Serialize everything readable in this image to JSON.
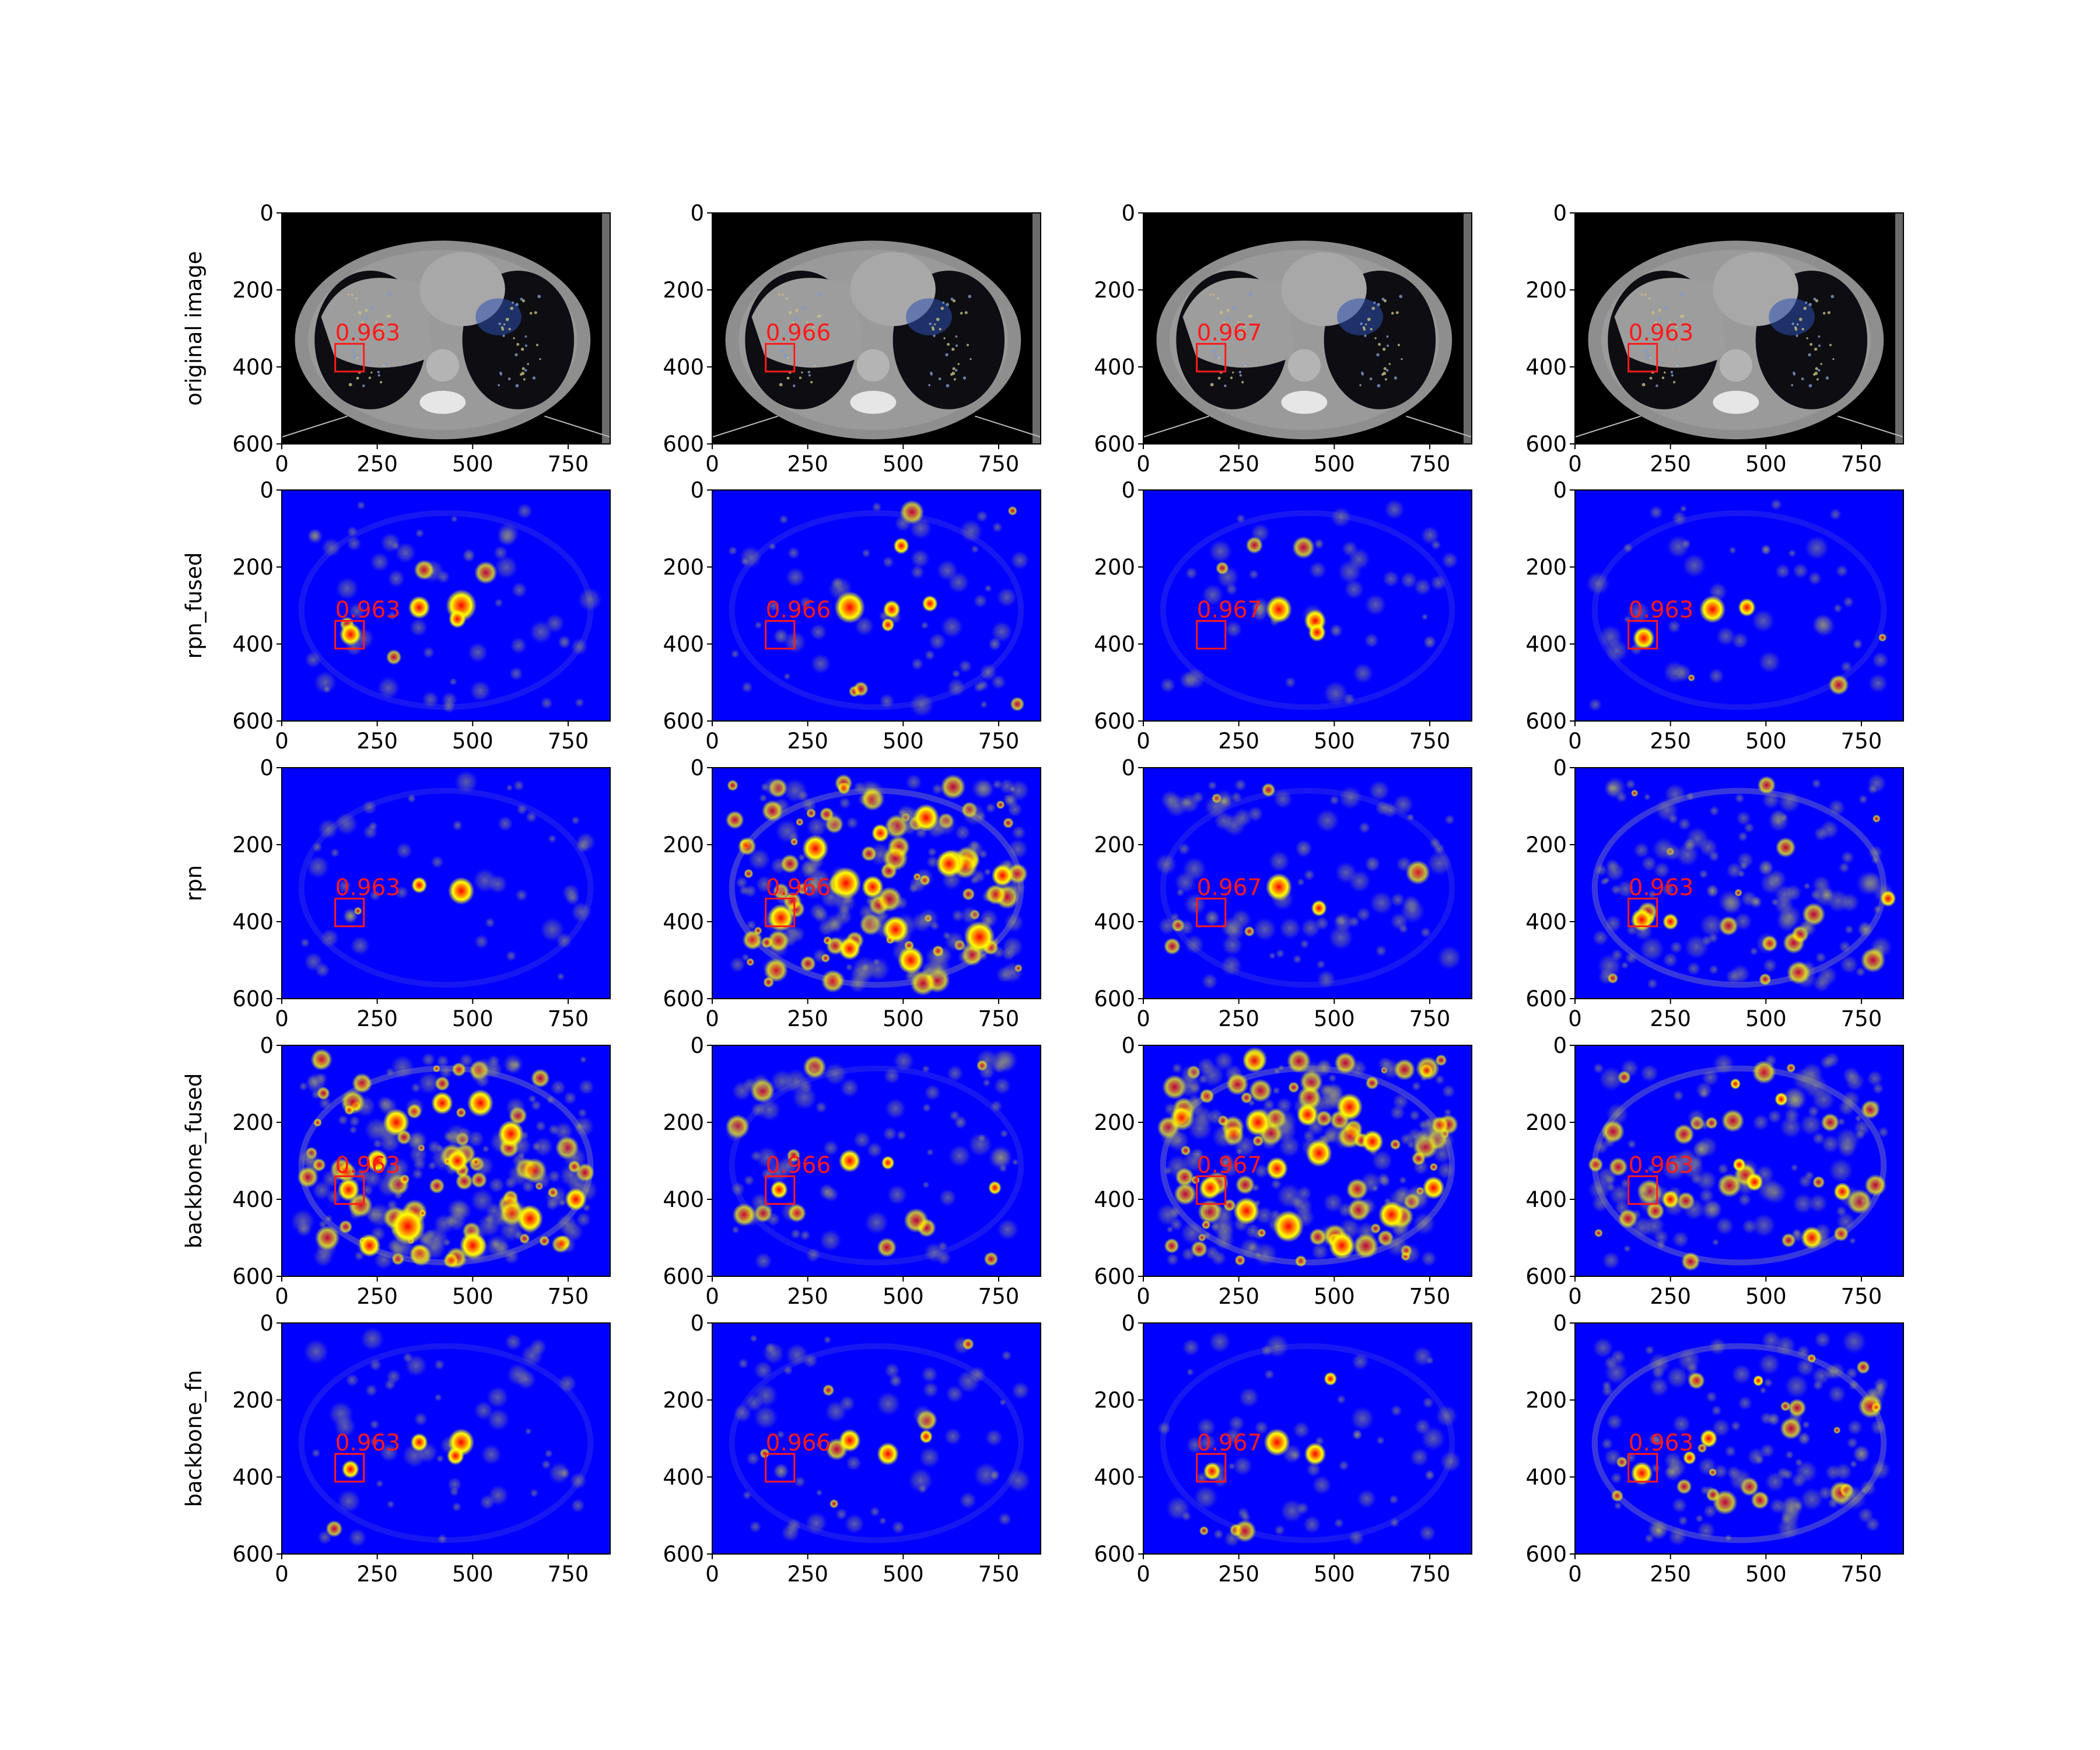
{
  "chart_data": {
    "type": "heatmap",
    "description_rows": [
      "original image",
      "rpn_fused",
      "rpn",
      "backbone_fused",
      "backbone_fn"
    ],
    "columns": 4,
    "x_ticks": [
      0,
      250,
      500,
      750
    ],
    "y_ticks": [
      0,
      200,
      400,
      600
    ],
    "xlim": [
      0,
      860
    ],
    "ylim": [
      600,
      0
    ],
    "scores": [
      "0.963",
      "0.966",
      "0.967",
      "0.963"
    ],
    "detection_box": {
      "x0": 140,
      "y0": 340,
      "x1": 215,
      "y1": 412
    },
    "colors": {
      "background_map": "#0000ff",
      "hot_low": "#ffff00",
      "hot_mid": "#ff8c00",
      "hot_high": "#ff0000",
      "box": "#ff1a1a",
      "ct_gray": "#8e8e8e"
    },
    "panels": [
      [
        {
          "kind": "ct",
          "hotspots": []
        },
        {
          "kind": "ct",
          "hotspots": []
        },
        {
          "kind": "ct",
          "hotspots": []
        },
        {
          "kind": "ct",
          "hotspots": []
        }
      ],
      [
        {
          "kind": "heat",
          "noise": 0.12,
          "hotspots": [
            [
              180,
              375,
              25,
              1.0
            ],
            [
              360,
              305,
              25,
              0.8
            ],
            [
              470,
              300,
              35,
              1.0
            ],
            [
              460,
              335,
              20,
              0.8
            ],
            [
              490,
              170,
              15,
              0.35
            ],
            [
              740,
              395,
              15,
              0.3
            ],
            [
              300,
              230,
              20,
              0.2
            ]
          ]
        },
        {
          "kind": "heat",
          "noise": 0.14,
          "hotspots": [
            [
              360,
              305,
              35,
              1.0
            ],
            [
              470,
              310,
              20,
              0.8
            ],
            [
              460,
              350,
              15,
              0.6
            ],
            [
              570,
              295,
              18,
              0.7
            ],
            [
              495,
              145,
              18,
              0.7
            ],
            [
              180,
              380,
              18,
              0.3
            ],
            [
              740,
              400,
              15,
              0.3
            ]
          ]
        },
        {
          "kind": "heat",
          "noise": 0.1,
          "hotspots": [
            [
              355,
              310,
              30,
              1.0
            ],
            [
              450,
              340,
              25,
              1.0
            ],
            [
              455,
              370,
              20,
              0.9
            ],
            [
              505,
              365,
              15,
              0.3
            ],
            [
              750,
              395,
              15,
              0.35
            ],
            [
              460,
              140,
              12,
              0.3
            ]
          ]
        },
        {
          "kind": "heat",
          "noise": 0.1,
          "hotspots": [
            [
              180,
              385,
              25,
              1.0
            ],
            [
              360,
              310,
              30,
              1.0
            ],
            [
              450,
              305,
              20,
              0.9
            ],
            [
              500,
              155,
              12,
              0.5
            ],
            [
              740,
              400,
              12,
              0.3
            ]
          ]
        }
      ],
      [
        {
          "kind": "heat",
          "noise": 0.1,
          "hotspots": [
            [
              470,
              320,
              30,
              1.0
            ],
            [
              360,
              305,
              18,
              0.7
            ],
            [
              180,
              385,
              18,
              0.4
            ],
            [
              340,
              80,
              10,
              0.25
            ],
            [
              460,
              150,
              12,
              0.25
            ]
          ]
        },
        {
          "kind": "heat",
          "noise": 0.55,
          "hotspots": [
            [
              350,
              300,
              35,
              0.9
            ],
            [
              560,
              130,
              30,
              0.8
            ],
            [
              420,
              310,
              25,
              1.0
            ],
            [
              700,
              440,
              35,
              0.9
            ],
            [
              620,
              250,
              30,
              0.8
            ],
            [
              180,
              390,
              30,
              0.8
            ],
            [
              480,
              420,
              30,
              0.8
            ],
            [
              270,
              210,
              30,
              0.7
            ],
            [
              520,
              500,
              30,
              0.8
            ],
            [
              440,
              170,
              20,
              0.8
            ],
            [
              760,
              280,
              25,
              0.7
            ],
            [
              360,
              470,
              25,
              0.7
            ]
          ]
        },
        {
          "kind": "heat",
          "noise": 0.2,
          "hotspots": [
            [
              355,
              310,
              30,
              1.0
            ],
            [
              460,
              365,
              18,
              0.8
            ],
            [
              180,
              390,
              18,
              0.4
            ],
            [
              600,
              250,
              18,
              0.3
            ],
            [
              420,
              210,
              20,
              0.3
            ]
          ]
        },
        {
          "kind": "heat",
          "noise": 0.32,
          "hotspots": [
            [
              175,
              395,
              25,
              1.0
            ],
            [
              250,
              400,
              18,
              0.6
            ],
            [
              360,
              320,
              15,
              0.5
            ],
            [
              820,
              340,
              18,
              0.6
            ],
            [
              760,
              420,
              18,
              0.5
            ],
            [
              500,
              260,
              18,
              0.5
            ],
            [
              300,
              200,
              15,
              0.4
            ],
            [
              660,
              330,
              15,
              0.4
            ]
          ]
        }
      ],
      [
        {
          "kind": "heat",
          "noise": 0.55,
          "hotspots": [
            [
              175,
              375,
              25,
              1.0
            ],
            [
              330,
              470,
              40,
              0.9
            ],
            [
              460,
              300,
              25,
              1.0
            ],
            [
              520,
              150,
              30,
              0.8
            ],
            [
              600,
              230,
              30,
              0.9
            ],
            [
              300,
              200,
              30,
              0.8
            ],
            [
              420,
              150,
              25,
              0.8
            ],
            [
              650,
              450,
              30,
              0.8
            ],
            [
              250,
              300,
              25,
              0.7
            ],
            [
              770,
              400,
              25,
              0.7
            ],
            [
              500,
              520,
              30,
              0.8
            ],
            [
              230,
              520,
              25,
              0.7
            ]
          ]
        },
        {
          "kind": "heat",
          "noise": 0.2,
          "hotspots": [
            [
              360,
              300,
              25,
              1.0
            ],
            [
              460,
              305,
              15,
              0.9
            ],
            [
              175,
              375,
              20,
              0.8
            ],
            [
              740,
              370,
              15,
              0.6
            ],
            [
              300,
              380,
              18,
              0.3
            ],
            [
              650,
              200,
              15,
              0.3
            ]
          ]
        },
        {
          "kind": "heat",
          "noise": 0.55,
          "hotspots": [
            [
              175,
              370,
              25,
              1.0
            ],
            [
              350,
              320,
              25,
              1.0
            ],
            [
              540,
              160,
              30,
              0.9
            ],
            [
              600,
              250,
              25,
              1.0
            ],
            [
              460,
              280,
              30,
              0.8
            ],
            [
              760,
              370,
              25,
              0.9
            ],
            [
              380,
              470,
              35,
              0.8
            ],
            [
              270,
              430,
              30,
              0.8
            ],
            [
              650,
              440,
              30,
              0.8
            ],
            [
              520,
              520,
              30,
              0.7
            ],
            [
              300,
              200,
              30,
              0.7
            ],
            [
              430,
              180,
              25,
              0.8
            ]
          ]
        },
        {
          "kind": "heat",
          "noise": 0.32,
          "hotspots": [
            [
              470,
              355,
              20,
              1.0
            ],
            [
              430,
              310,
              15,
              0.7
            ],
            [
              180,
              375,
              15,
              0.5
            ],
            [
              540,
              140,
              15,
              0.8
            ],
            [
              420,
              100,
              12,
              0.6
            ],
            [
              700,
              380,
              20,
              0.6
            ],
            [
              250,
              400,
              20,
              0.6
            ],
            [
              620,
              500,
              25,
              0.6
            ],
            [
              330,
              270,
              20,
              0.5
            ]
          ]
        }
      ],
      [
        {
          "kind": "heat",
          "noise": 0.12,
          "hotspots": [
            [
              470,
              310,
              30,
              1.0
            ],
            [
              455,
              345,
              20,
              0.9
            ],
            [
              360,
              310,
              20,
              0.8
            ],
            [
              180,
              380,
              20,
              0.7
            ],
            [
              740,
              390,
              12,
              0.3
            ],
            [
              330,
              90,
              12,
              0.2
            ]
          ]
        },
        {
          "kind": "heat",
          "noise": 0.14,
          "hotspots": [
            [
              360,
              305,
              25,
              1.0
            ],
            [
              460,
              340,
              25,
              1.0
            ],
            [
              560,
              295,
              15,
              0.6
            ],
            [
              180,
              385,
              18,
              0.5
            ],
            [
              740,
              395,
              12,
              0.3
            ],
            [
              480,
              150,
              15,
              0.3
            ]
          ]
        },
        {
          "kind": "heat",
          "noise": 0.14,
          "hotspots": [
            [
              350,
              310,
              30,
              1.0
            ],
            [
              450,
              340,
              25,
              1.0
            ],
            [
              180,
              385,
              20,
              0.6
            ],
            [
              490,
              145,
              15,
              0.8
            ],
            [
              560,
              290,
              12,
              0.5
            ],
            [
              750,
              395,
              12,
              0.35
            ]
          ]
        },
        {
          "kind": "heat",
          "noise": 0.32,
          "hotspots": [
            [
              175,
              390,
              25,
              1.0
            ],
            [
              350,
              300,
              20,
              0.9
            ],
            [
              300,
              350,
              15,
              0.6
            ],
            [
              480,
              150,
              12,
              0.7
            ],
            [
              750,
              340,
              20,
              0.5
            ],
            [
              600,
              300,
              15,
              0.4
            ],
            [
              520,
              250,
              15,
              0.4
            ],
            [
              720,
              440,
              15,
              0.4
            ]
          ]
        }
      ]
    ]
  }
}
